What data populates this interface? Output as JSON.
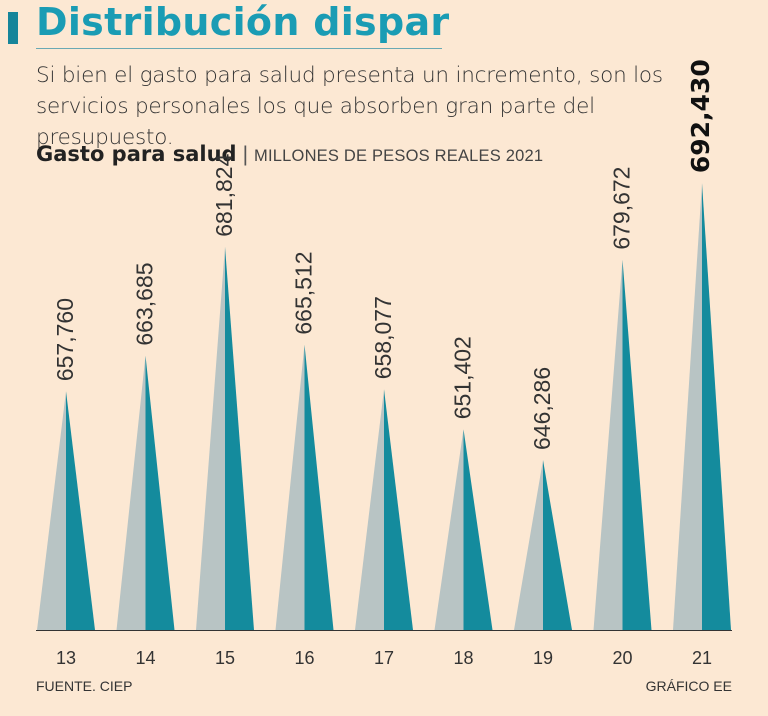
{
  "header": {
    "title": "Distribución dispar",
    "subtitle": "Si bien el gasto para salud presenta un incremento, son los servicios personales los que absorben gran parte del presupuesto."
  },
  "chart_header": {
    "label": "Gasto para salud",
    "separator": "|",
    "units": "MILLONES DE PESOS REALES 2021"
  },
  "footer": {
    "source": "FUENTE. CIEP",
    "credit": "GRÁFICO EE"
  },
  "colors": {
    "accent": "#1a9cb4",
    "light_face": "#b8c4c4",
    "dark_face": "#148b9d",
    "background": "#fce8d3"
  },
  "chart_data": {
    "type": "bar",
    "title": "Gasto para salud",
    "ylabel": "Millones de pesos reales 2021",
    "xlabel": "",
    "categories": [
      "13",
      "14",
      "15",
      "16",
      "17",
      "18",
      "19",
      "20",
      "21"
    ],
    "values": [
      657760,
      663685,
      681824,
      665512,
      658077,
      651402,
      646286,
      679672,
      692430
    ],
    "value_labels": [
      "657,760",
      "663,685",
      "681,824",
      "665,512",
      "658,077",
      "651,402",
      "646,286",
      "679,672",
      "692,430"
    ],
    "highlight_index": 8
  }
}
